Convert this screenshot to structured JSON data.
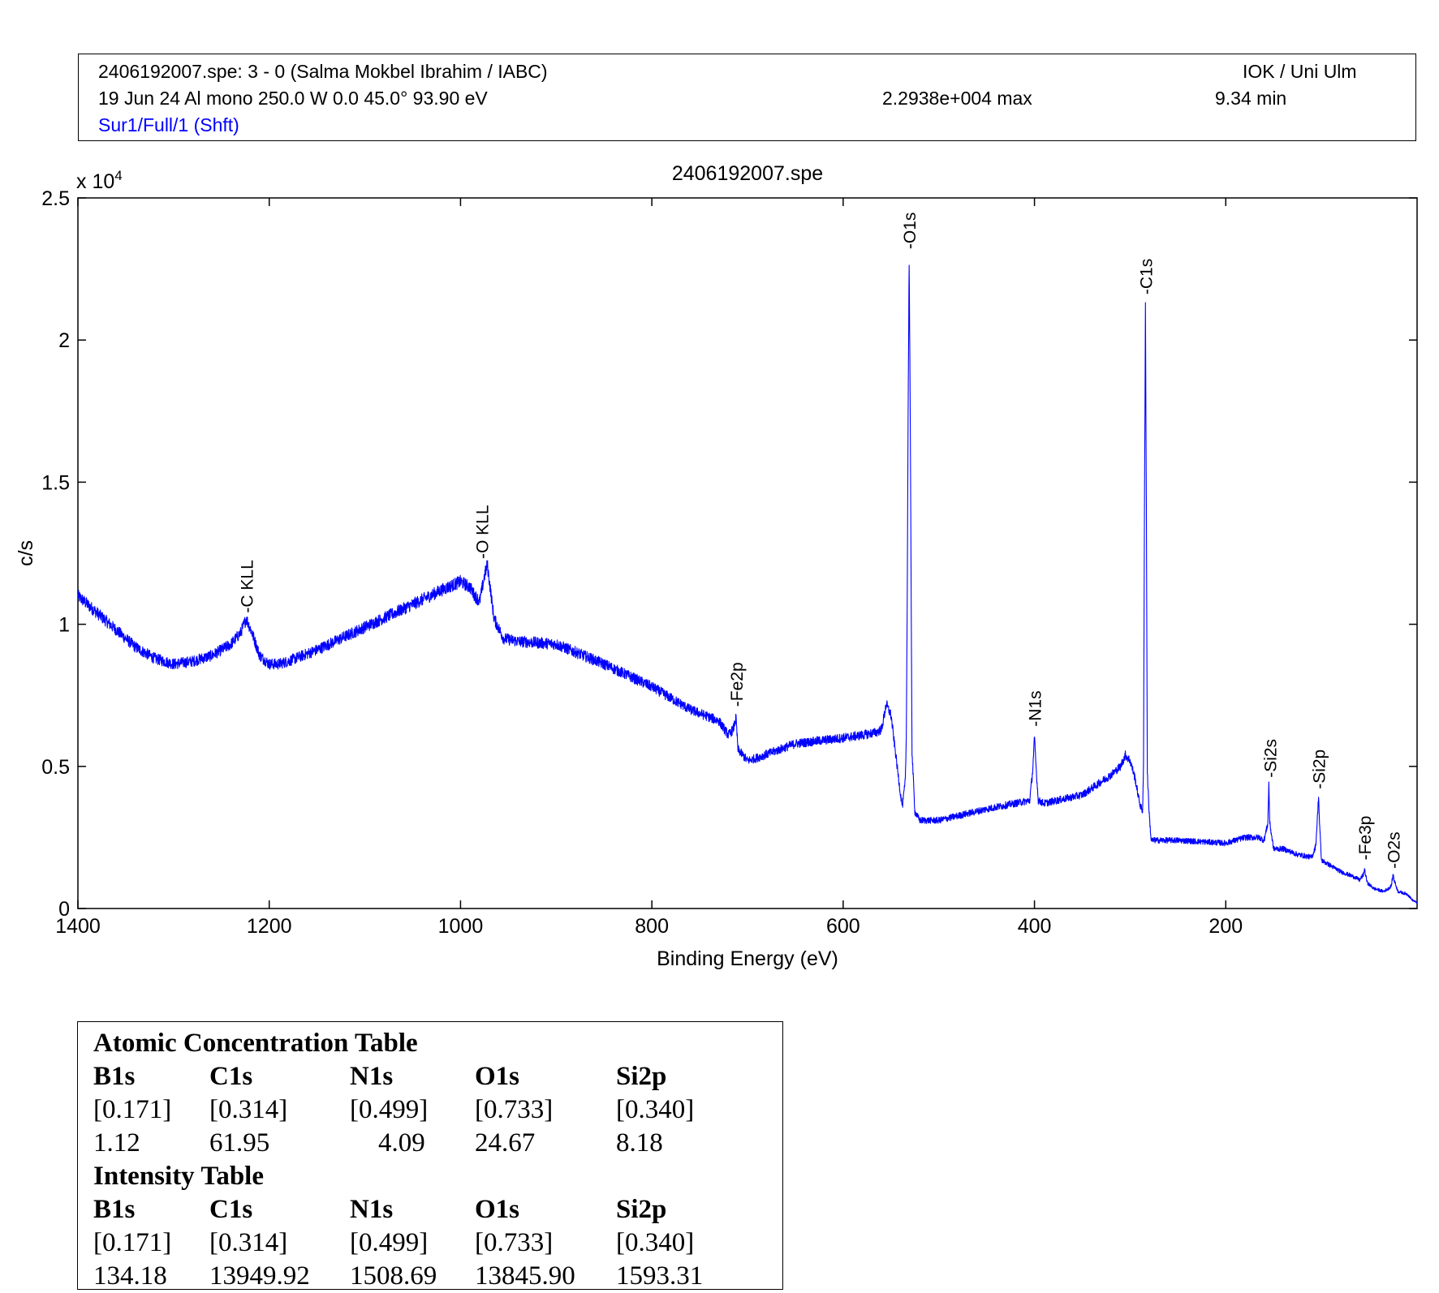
{
  "header": {
    "line1_left": "2406192007.spe: 3 - 0 (Salma Mokbel Ibrahim / IABC)",
    "line1_right": "IOK / Uni Ulm",
    "line2_left": "19 Jun 24  Al mono  250.0 W  0.0  45.0°  93.90 eV",
    "line2_mid": "2.2938e+004 max",
    "line2_right": "9.34 min",
    "line3_left": "Sur1/Full/1 (Shft)",
    "line3_color": "#0000ff"
  },
  "chart_data": {
    "type": "line",
    "title": "2406192007.spe",
    "xlabel": "Binding Energy (eV)",
    "ylabel": "c/s",
    "y_exponent_label": "x 10",
    "y_exponent_power": "4",
    "xlim": [
      1400,
      0
    ],
    "ylim": [
      0,
      25000
    ],
    "x_ticks": [
      1400,
      1200,
      1000,
      800,
      600,
      400,
      200
    ],
    "x_tick_labels": [
      "1400",
      "1200",
      "1000",
      "800",
      "600",
      "400",
      "200"
    ],
    "y_ticks": [
      0,
      5000,
      10000,
      15000,
      20000,
      25000
    ],
    "y_tick_labels": [
      "0",
      "0.5",
      "1",
      "1.5",
      "2",
      "2.5"
    ],
    "grid": false,
    "line_color": "#0000ff",
    "series": [
      {
        "x": [
          1400,
          1380,
          1360,
          1340,
          1320,
          1300,
          1280,
          1260,
          1240,
          1230,
          1224,
          1218,
          1210,
          1200,
          1190,
          1180,
          1150,
          1100,
          1050,
          1020,
          1000,
          990,
          985,
          980,
          975,
          972,
          965,
          955,
          940,
          900,
          850,
          800,
          760,
          730,
          720,
          715,
          712,
          710,
          700,
          690,
          650,
          600,
          580,
          565,
          560,
          557,
          555,
          550,
          545,
          540,
          538,
          535,
          534,
          533,
          532,
          531,
          530,
          528,
          525,
          520,
          500,
          450,
          420,
          405,
          402,
          400,
          398,
          396,
          390,
          350,
          320,
          310,
          305,
          300,
          295,
          290,
          287,
          286,
          285,
          284,
          283,
          282,
          280,
          278,
          275,
          270,
          250,
          200,
          180,
          165,
          160,
          156,
          155,
          154,
          150,
          140,
          125,
          110,
          106,
          104,
          103,
          102,
          100,
          95,
          80,
          65,
          60,
          56,
          55,
          54,
          52,
          45,
          35,
          30,
          27,
          26,
          25,
          24,
          20,
          10,
          5,
          0
        ],
        "y": [
          11000,
          10400,
          9800,
          9200,
          8800,
          8600,
          8700,
          8900,
          9300,
          9700,
          10200,
          9700,
          8900,
          8600,
          8600,
          8700,
          9100,
          9900,
          10700,
          11200,
          11500,
          11300,
          11000,
          10800,
          11700,
          12100,
          10200,
          9500,
          9400,
          9300,
          8600,
          7800,
          7000,
          6600,
          6100,
          6300,
          6700,
          5600,
          5200,
          5300,
          5800,
          6000,
          6100,
          6200,
          6300,
          6800,
          7200,
          6800,
          5400,
          4000,
          3600,
          4500,
          6000,
          11000,
          18000,
          22900,
          18000,
          5500,
          3400,
          3100,
          3100,
          3500,
          3700,
          3800,
          4800,
          6000,
          4800,
          3800,
          3700,
          4000,
          4700,
          5000,
          5400,
          5200,
          4600,
          3700,
          3400,
          5000,
          14000,
          21300,
          14000,
          4800,
          3300,
          2400,
          2400,
          2400,
          2400,
          2300,
          2500,
          2500,
          2400,
          3000,
          4400,
          3000,
          2100,
          2100,
          1900,
          1800,
          2200,
          3300,
          4000,
          3000,
          1700,
          1600,
          1300,
          1100,
          1000,
          1200,
          1400,
          1200,
          900,
          700,
          600,
          700,
          800,
          1000,
          1200,
          1000,
          600,
          500,
          300,
          200
        ]
      }
    ],
    "annotations": [
      {
        "label": "-C KLL",
        "x": 1224,
        "y": 10400
      },
      {
        "label": "-O KLL",
        "x": 978,
        "y": 12300
      },
      {
        "label": "-Fe2p",
        "x": 712,
        "y": 7100
      },
      {
        "label": "-O1s",
        "x": 531,
        "y": 23200
      },
      {
        "label": "-N1s",
        "x": 400,
        "y": 6400
      },
      {
        "label": "-C1s",
        "x": 284,
        "y": 21600
      },
      {
        "label": "-Si2s",
        "x": 154,
        "y": 4600
      },
      {
        "label": "-Si2p",
        "x": 103,
        "y": 4200
      },
      {
        "label": "-Fe3p",
        "x": 55,
        "y": 1700
      },
      {
        "label": "-O2s",
        "x": 25,
        "y": 1400
      }
    ]
  },
  "tables": {
    "atomic": {
      "title": "Atomic Concentration Table",
      "headers": [
        "B1s",
        "C1s",
        "N1s",
        "O1s",
        "Si2p"
      ],
      "factors": [
        "[0.171]",
        "[0.314]",
        "[0.499]",
        "[0.733]",
        "[0.340]"
      ],
      "values": [
        "1.12",
        "61.95",
        "4.09",
        "24.67",
        "8.18"
      ]
    },
    "intensity": {
      "title": "Intensity Table",
      "headers": [
        "B1s",
        "C1s",
        "N1s",
        "O1s",
        "Si2p"
      ],
      "factors": [
        "[0.171]",
        "[0.314]",
        "[0.499]",
        "[0.733]",
        "[0.340]"
      ],
      "values": [
        "134.18",
        "13949.92",
        "1508.69",
        "13845.90",
        "1593.31"
      ]
    }
  }
}
